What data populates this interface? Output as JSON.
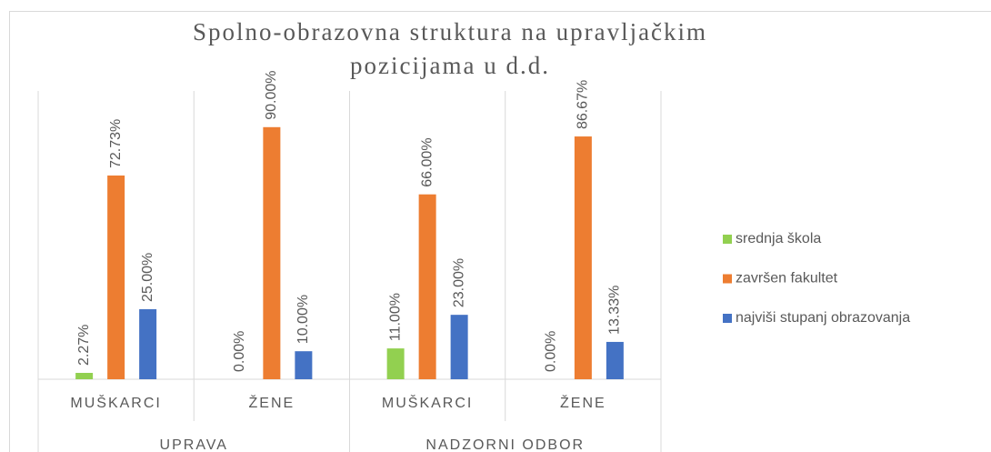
{
  "chart_data": {
    "type": "bar",
    "title": [
      "Spolno-obrazovna struktura na upravljačkim",
      "pozicijama u d.d."
    ],
    "groups": [
      {
        "label": "UPRAVA",
        "categories": [
          "MUŠKARCI",
          "ŽENE"
        ]
      },
      {
        "label": "NADZORNI ODBOR",
        "categories": [
          "MUŠKARCI",
          "ŽENE"
        ]
      }
    ],
    "series": [
      {
        "name": "srednja škola",
        "color": "#92d050",
        "values": [
          2.27,
          0,
          11,
          0
        ],
        "value_labels": [
          "2.27%",
          "0.00%",
          "11.00%",
          "0.00%"
        ]
      },
      {
        "name": "završen fakultet",
        "color": "#ed7d31",
        "values": [
          72.73,
          90,
          66,
          86.67
        ],
        "value_labels": [
          "72.73%",
          "90.00%",
          "66.00%",
          "86.67%"
        ]
      },
      {
        "name": "najviši stupanj obrazovanja",
        "color": "#4472c4",
        "values": [
          25,
          10,
          23,
          13.33
        ],
        "value_labels": [
          "25.00%",
          "10.00%",
          "23.00%",
          "13.33%"
        ]
      }
    ],
    "ylim": [
      0,
      100
    ],
    "legend": "right"
  }
}
